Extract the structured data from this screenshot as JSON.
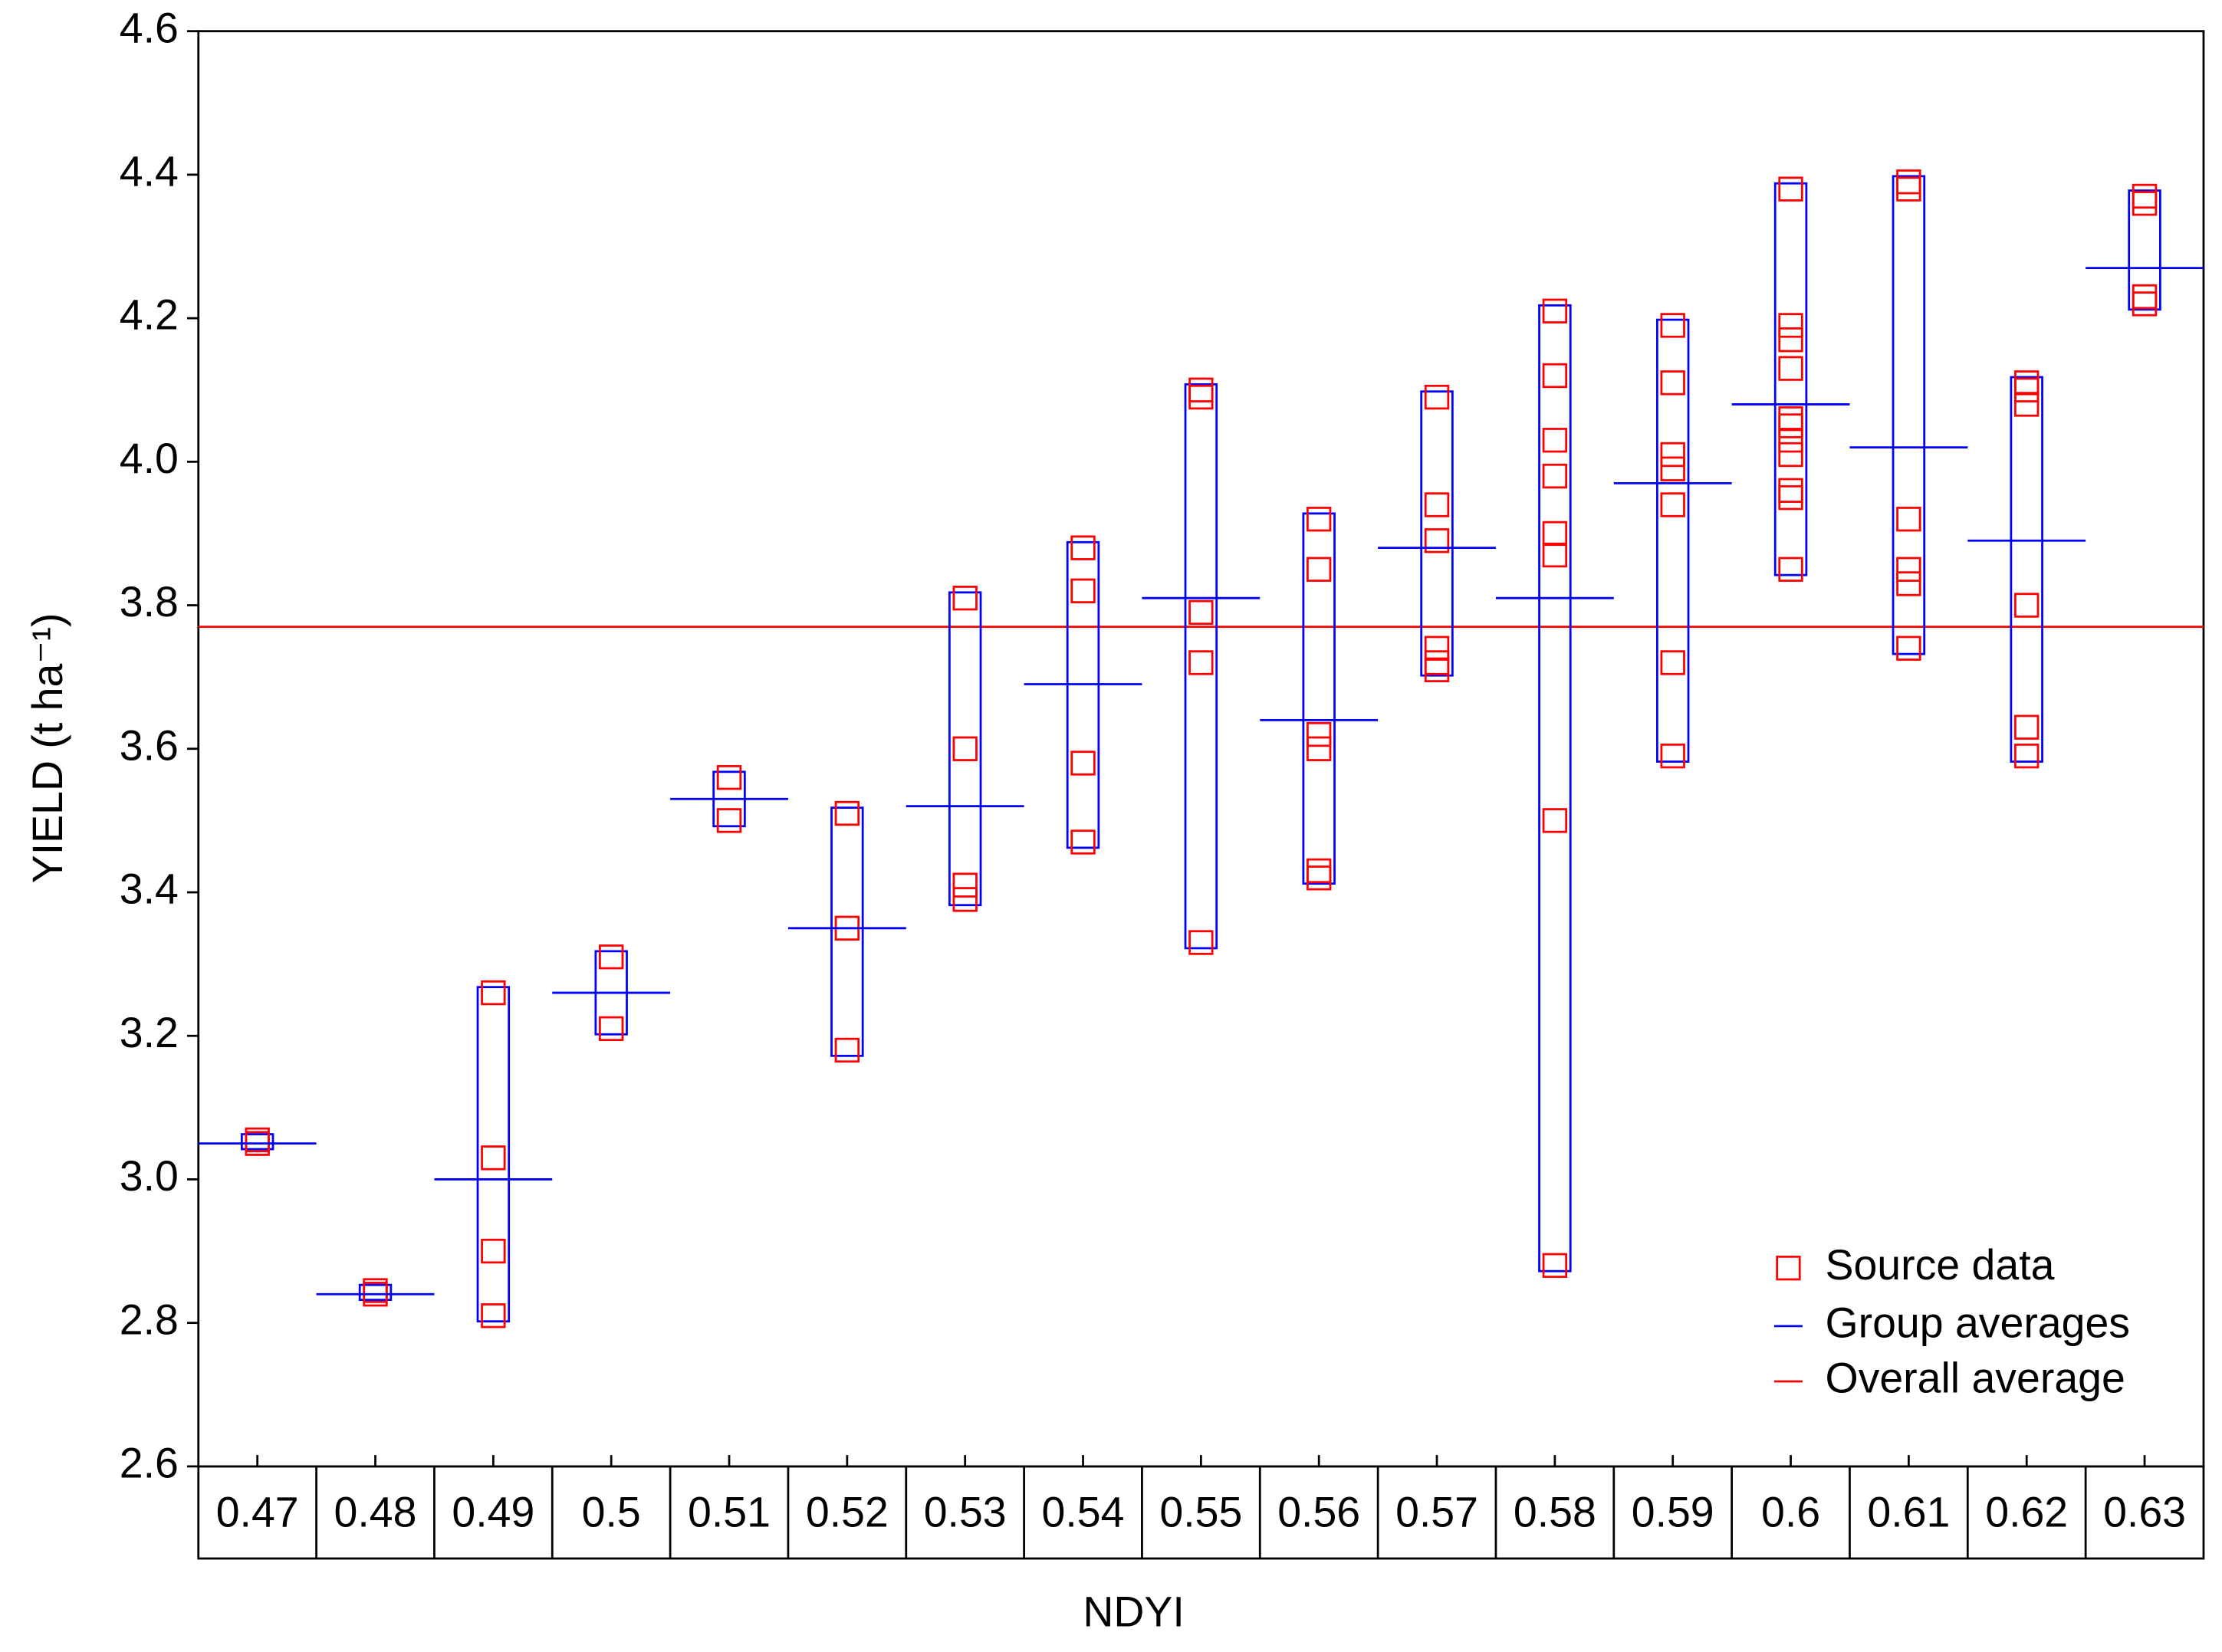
{
  "chart_data": {
    "type": "scatter",
    "xlabel": "NDYI",
    "ylabel": "YIELD (t ha⁻¹)",
    "categories": [
      "0.47",
      "0.48",
      "0.49",
      "0.5",
      "0.51",
      "0.52",
      "0.53",
      "0.54",
      "0.55",
      "0.56",
      "0.57",
      "0.58",
      "0.59",
      "0.6",
      "0.61",
      "0.62",
      "0.63"
    ],
    "series": [
      {
        "name": "Source data",
        "color": "#ff0000",
        "values": [
          [
            3.05,
            3.055
          ],
          [
            2.84,
            2.845
          ],
          [
            2.81,
            2.9,
            3.03,
            3.26
          ],
          [
            3.21,
            3.31
          ],
          [
            3.5,
            3.56
          ],
          [
            3.18,
            3.35,
            3.51
          ],
          [
            3.39,
            3.41,
            3.6,
            3.81
          ],
          [
            3.47,
            3.58,
            3.82,
            3.88
          ],
          [
            3.33,
            3.72,
            3.79,
            4.09,
            4.1
          ],
          [
            3.42,
            3.43,
            3.6,
            3.62,
            3.85,
            3.92
          ],
          [
            3.71,
            3.72,
            3.74,
            3.89,
            3.94,
            4.09
          ],
          [
            2.88,
            3.5,
            3.87,
            3.9,
            3.98,
            4.03,
            4.12,
            4.21
          ],
          [
            3.59,
            3.72,
            3.94,
            3.99,
            4.01,
            4.11,
            4.19
          ],
          [
            3.85,
            3.95,
            3.96,
            4.01,
            4.03,
            4.05,
            4.06,
            4.13,
            4.17,
            4.19,
            4.38
          ],
          [
            3.74,
            3.83,
            3.85,
            3.92,
            4.38,
            4.39
          ],
          [
            3.59,
            3.63,
            3.8,
            4.08,
            4.1,
            4.11
          ],
          [
            4.22,
            4.23,
            4.36,
            4.37
          ]
        ]
      },
      {
        "name": "Group averages",
        "color": "#0000ff",
        "values": [
          3.05,
          2.84,
          3.0,
          3.26,
          3.53,
          3.35,
          3.52,
          3.69,
          3.81,
          3.64,
          3.88,
          3.81,
          3.97,
          4.08,
          4.02,
          3.89,
          4.27
        ]
      }
    ],
    "overall_average": {
      "name": "Overall average",
      "color": "#ff0000",
      "value": 3.77
    },
    "ylim": [
      2.6,
      4.6
    ],
    "yticks": [
      2.6,
      2.8,
      {
        "value": 3,
        "label": "3.0"
      },
      3.2,
      3.4,
      3.6,
      3.8,
      {
        "value": 4,
        "label": "4.0"
      },
      4.2,
      4.4,
      4.6
    ],
    "legend": "lower right"
  }
}
